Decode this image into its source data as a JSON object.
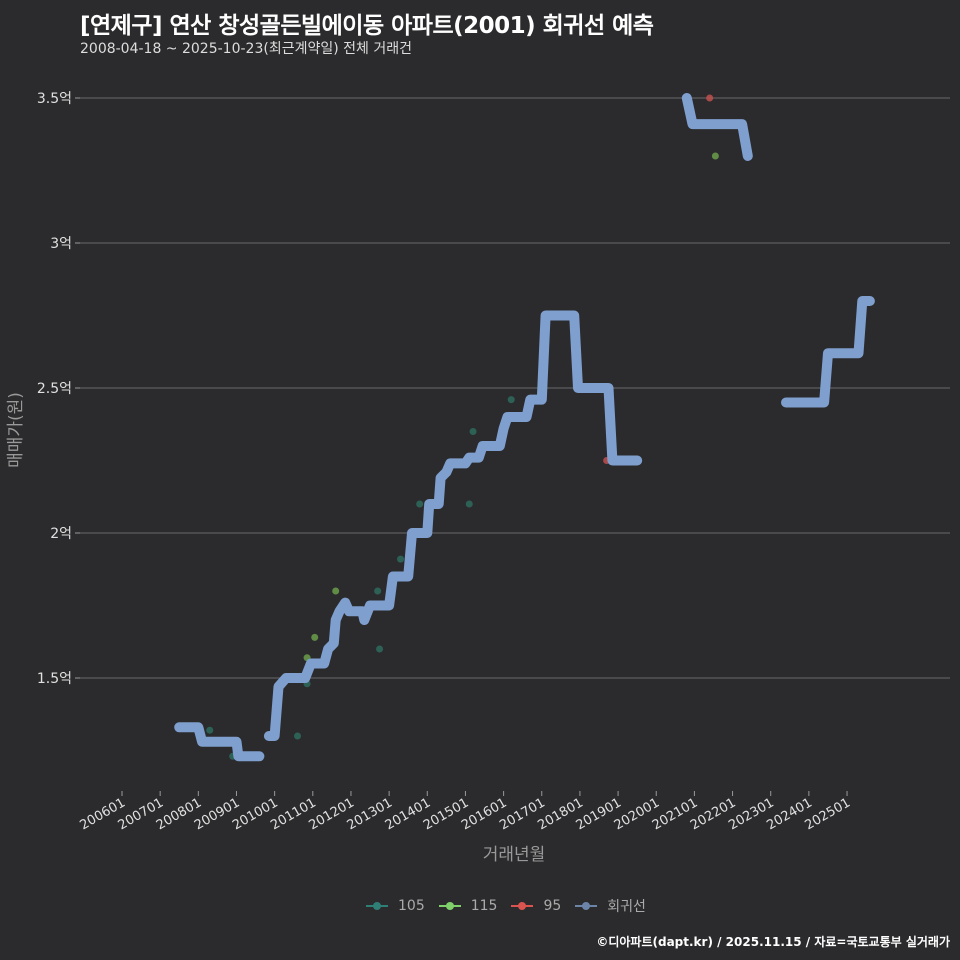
{
  "header": {
    "title": "[연제구] 연산 창성골든빌에이동 아파트(2001) 회귀선 예측",
    "subtitle": "2008-04-18 ~ 2025-10-23(최근계약일) 전체 거래건"
  },
  "footer": {
    "credit": "©디아파트(dapt.kr) / 2025.11.15 / 자료=국토교통부 실거래가"
  },
  "colors": {
    "background": "#2b2b2d",
    "grid": "#6a6a6a",
    "s105": "#2e6b5e",
    "s115": "#6a9e4a",
    "s95": "#c0504d",
    "regression": "#7f9fcf"
  },
  "legend": [
    {
      "label": "105",
      "color": "#2f7f77"
    },
    {
      "label": "115",
      "color": "#7fd06a"
    },
    {
      "label": "95",
      "color": "#d9534f"
    },
    {
      "label": "회귀선",
      "color": "#6b84a8"
    }
  ],
  "chart_data": {
    "type": "line",
    "title": "[연제구] 연산 창성골든빌에이동 아파트(2001) 회귀선 예측",
    "subtitle": "2008-04-18 ~ 2025-10-23(최근계약일) 전체 거래건",
    "xlabel": "거래년월",
    "ylabel": "매매가(원)",
    "x_ticks": [
      "200601",
      "200701",
      "200801",
      "200901",
      "201001",
      "201101",
      "201201",
      "201301",
      "201401",
      "201501",
      "201601",
      "201701",
      "201801",
      "201901",
      "202001",
      "202101",
      "202201",
      "202301",
      "202401",
      "202501"
    ],
    "y_ticks": [
      "1.5억",
      "2억",
      "2.5억",
      "3억",
      "3.5억"
    ],
    "y_tick_values": [
      1.5,
      2.0,
      2.5,
      3.0,
      3.5
    ],
    "ylim": [
      1.12,
      3.6
    ],
    "xlim": [
      2005.5,
      2026.2
    ],
    "grid": true,
    "legend_position": "bottom",
    "series": [
      {
        "name": "105",
        "type": "scatter",
        "points": [
          [
            2008.3,
            1.32
          ],
          [
            2008.9,
            1.23
          ],
          [
            2010.6,
            1.3
          ],
          [
            2010.85,
            1.48
          ],
          [
            2012.7,
            1.8
          ],
          [
            2012.75,
            1.6
          ],
          [
            2013.3,
            1.91
          ],
          [
            2013.8,
            2.1
          ],
          [
            2015.1,
            2.1
          ],
          [
            2015.2,
            2.35
          ],
          [
            2016.2,
            2.46
          ]
        ]
      },
      {
        "name": "115",
        "type": "scatter",
        "points": [
          [
            2010.85,
            1.57
          ],
          [
            2011.05,
            1.64
          ],
          [
            2011.6,
            1.8
          ],
          [
            2021.55,
            3.3
          ]
        ]
      },
      {
        "name": "95",
        "type": "scatter",
        "points": [
          [
            2021.4,
            3.5
          ],
          [
            2018.7,
            2.25
          ]
        ]
      },
      {
        "name": "회귀선",
        "type": "line",
        "segments": [
          [
            [
              2007.5,
              1.33
            ],
            [
              2008.0,
              1.33
            ],
            [
              2008.1,
              1.28
            ],
            [
              2009.0,
              1.28
            ],
            [
              2009.05,
              1.23
            ],
            [
              2009.6,
              1.23
            ]
          ],
          [
            [
              2009.85,
              1.3
            ],
            [
              2010.0,
              1.3
            ],
            [
              2010.1,
              1.47
            ],
            [
              2010.3,
              1.5
            ],
            [
              2010.8,
              1.5
            ],
            [
              2010.95,
              1.55
            ],
            [
              2011.3,
              1.55
            ],
            [
              2011.4,
              1.6
            ],
            [
              2011.55,
              1.62
            ],
            [
              2011.6,
              1.7
            ],
            [
              2011.7,
              1.73
            ],
            [
              2011.85,
              1.76
            ],
            [
              2011.95,
              1.73
            ],
            [
              2012.3,
              1.73
            ],
            [
              2012.35,
              1.7
            ],
            [
              2012.5,
              1.75
            ],
            [
              2013.0,
              1.75
            ],
            [
              2013.1,
              1.85
            ],
            [
              2013.5,
              1.85
            ],
            [
              2013.6,
              2.0
            ],
            [
              2014.0,
              2.0
            ],
            [
              2014.05,
              2.1
            ],
            [
              2014.3,
              2.1
            ],
            [
              2014.35,
              2.19
            ],
            [
              2014.5,
              2.21
            ],
            [
              2014.6,
              2.24
            ],
            [
              2015.0,
              2.24
            ],
            [
              2015.1,
              2.26
            ],
            [
              2015.35,
              2.26
            ],
            [
              2015.45,
              2.3
            ],
            [
              2015.9,
              2.3
            ],
            [
              2016.0,
              2.36
            ],
            [
              2016.1,
              2.4
            ],
            [
              2016.6,
              2.4
            ],
            [
              2016.7,
              2.46
            ],
            [
              2017.0,
              2.46
            ],
            [
              2017.1,
              2.75
            ],
            [
              2017.85,
              2.75
            ],
            [
              2017.95,
              2.5
            ],
            [
              2018.75,
              2.5
            ],
            [
              2018.85,
              2.25
            ],
            [
              2019.5,
              2.25
            ]
          ],
          [
            [
              2020.8,
              3.5
            ],
            [
              2020.95,
              3.41
            ],
            [
              2022.25,
              3.41
            ],
            [
              2022.4,
              3.3
            ]
          ],
          [
            [
              2023.4,
              2.45
            ],
            [
              2024.4,
              2.45
            ],
            [
              2024.5,
              2.62
            ],
            [
              2025.3,
              2.62
            ],
            [
              2025.4,
              2.8
            ],
            [
              2025.6,
              2.8
            ]
          ]
        ]
      }
    ]
  },
  "axis": {
    "xlabel": "거래년월",
    "ylabel": "매매가(원)"
  }
}
